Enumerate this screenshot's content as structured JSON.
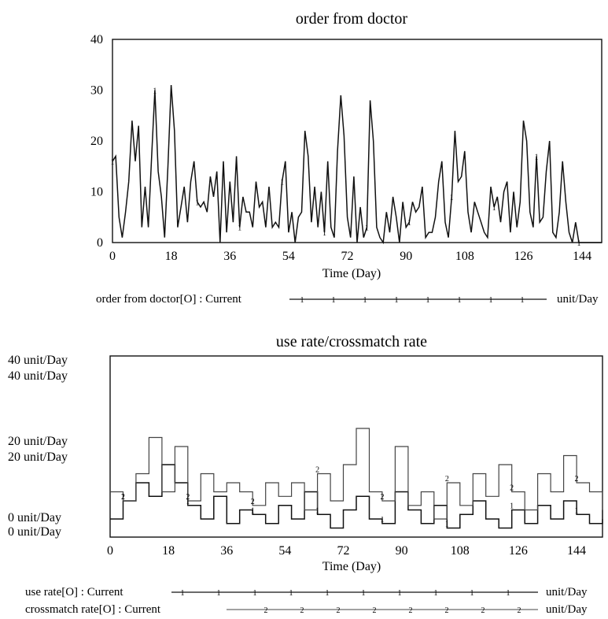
{
  "chart_data": [
    {
      "type": "line",
      "title": "order from doctor",
      "xlabel": "Time (Day)",
      "ylabel": "",
      "xlim": [
        0,
        150
      ],
      "ylim": [
        0,
        40
      ],
      "xticks": [
        "0",
        "18",
        "36",
        "54",
        "72",
        "90",
        "108",
        "126",
        "144"
      ],
      "yticks": [
        "0",
        "10",
        "20",
        "30",
        "40"
      ],
      "grid": false,
      "legend_position": "bottom",
      "series": [
        {
          "name": "order from doctor[O] : Current",
          "unit": "unit/Day",
          "marker": "1",
          "x": [
            0,
            1,
            2,
            3,
            4,
            5,
            6,
            7,
            8,
            9,
            10,
            11,
            12,
            13,
            14,
            15,
            16,
            17,
            18,
            19,
            20,
            21,
            22,
            23,
            24,
            25,
            26,
            27,
            28,
            29,
            30,
            31,
            32,
            33,
            34,
            35,
            36,
            37,
            38,
            39,
            40,
            41,
            42,
            43,
            44,
            45,
            46,
            47,
            48,
            49,
            50,
            51,
            52,
            53,
            54,
            55,
            56,
            57,
            58,
            59,
            60,
            61,
            62,
            63,
            64,
            65,
            66,
            67,
            68,
            69,
            70,
            71,
            72,
            73,
            74,
            75,
            76,
            77,
            78,
            79,
            80,
            81,
            82,
            83,
            84,
            85,
            86,
            87,
            88,
            89,
            90,
            91,
            92,
            93,
            94,
            95,
            96,
            97,
            98,
            99,
            100,
            101,
            102,
            103,
            104,
            105,
            106,
            107,
            108,
            109,
            110,
            111,
            112,
            113,
            114,
            115,
            116,
            117,
            118,
            119,
            120,
            121,
            122,
            123,
            124,
            125,
            126,
            127,
            128,
            129,
            130,
            131,
            132,
            133,
            134,
            135,
            136,
            137,
            138,
            139,
            140,
            141,
            142,
            143,
            144,
            145,
            146,
            147,
            148,
            149,
            150
          ],
          "values": [
            16,
            17,
            5,
            1,
            6,
            12,
            24,
            16,
            23,
            3,
            11,
            3,
            17,
            30,
            14,
            9,
            1,
            15,
            31,
            22,
            3,
            7,
            11,
            4,
            12,
            16,
            8,
            7,
            8,
            6,
            13,
            9,
            14,
            0,
            16,
            2,
            12,
            4,
            17,
            3,
            9,
            6,
            6,
            3,
            12,
            7,
            8,
            3,
            11,
            3,
            4,
            3,
            12,
            16,
            2,
            6,
            0,
            5,
            6,
            22,
            17,
            4,
            11,
            3,
            10,
            2,
            16,
            3,
            1,
            18,
            29,
            21,
            5,
            1,
            13,
            0,
            7,
            1,
            3,
            28,
            20,
            3,
            1,
            0,
            6,
            2,
            9,
            5,
            0,
            8,
            3,
            4,
            8,
            6,
            7,
            11,
            1,
            2,
            2,
            5,
            12,
            16,
            4,
            1,
            9,
            22,
            12,
            13,
            18,
            6,
            2,
            8,
            6,
            4,
            2,
            1,
            11,
            7,
            9,
            4,
            10,
            12,
            2,
            10,
            3,
            8,
            24,
            20,
            6,
            3,
            17,
            4,
            5,
            14,
            20,
            2,
            1,
            6,
            16,
            8,
            2,
            0,
            4,
            0,
            0,
            0,
            0,
            0,
            0,
            0,
            0
          ],
          "values_shown_until_x": 150
        }
      ]
    },
    {
      "type": "line",
      "title": "use rate/crossmatch rate",
      "xlabel": "Time (Day)",
      "ylabel": "",
      "xlim": [
        0,
        152
      ],
      "ylim": [
        0,
        40
      ],
      "xticks": [
        "0",
        "18",
        "36",
        "54",
        "72",
        "90",
        "108",
        "126",
        "144"
      ],
      "yticks_left": [
        {
          "value": 40,
          "labels": [
            "40  unit/Day",
            "40  unit/Day"
          ]
        },
        {
          "value": 20,
          "labels": [
            "20  unit/Day",
            "20  unit/Day"
          ]
        },
        {
          "value": 0,
          "labels": [
            "0  unit/Day",
            "0  unit/Day"
          ]
        }
      ],
      "grid": false,
      "legend_position": "bottom",
      "series": [
        {
          "name": "use rate[O] : Current",
          "unit": "unit/Day",
          "marker": "1",
          "x": [
            0,
            4,
            8,
            12,
            16,
            20,
            24,
            28,
            32,
            36,
            40,
            44,
            48,
            52,
            56,
            60,
            64,
            68,
            72,
            76,
            80,
            84,
            88,
            92,
            96,
            100,
            104,
            108,
            112,
            116,
            120,
            124,
            128,
            132,
            136,
            140,
            144,
            148,
            152
          ],
          "values": [
            4,
            8,
            12,
            9,
            16,
            12,
            7,
            4,
            9,
            3,
            6,
            5,
            3,
            7,
            4,
            10,
            5,
            2,
            6,
            9,
            4,
            3,
            10,
            6,
            3,
            7,
            2,
            5,
            8,
            4,
            2,
            6,
            3,
            7,
            4,
            8,
            5,
            3,
            6
          ]
        },
        {
          "name": "crossmatch rate[O] : Current",
          "unit": "unit/Day",
          "marker": "2",
          "x": [
            0,
            4,
            8,
            12,
            16,
            20,
            24,
            28,
            32,
            36,
            40,
            44,
            48,
            52,
            56,
            60,
            64,
            68,
            72,
            76,
            80,
            84,
            88,
            92,
            96,
            100,
            104,
            108,
            112,
            116,
            120,
            124,
            128,
            132,
            136,
            140,
            144,
            148,
            152
          ],
          "values": [
            10,
            8,
            14,
            22,
            10,
            20,
            8,
            14,
            10,
            12,
            10,
            7,
            12,
            9,
            12,
            6,
            14,
            8,
            16,
            24,
            10,
            8,
            20,
            7,
            10,
            4,
            12,
            7,
            14,
            9,
            16,
            10,
            6,
            14,
            10,
            18,
            12,
            10,
            4
          ]
        }
      ]
    }
  ]
}
